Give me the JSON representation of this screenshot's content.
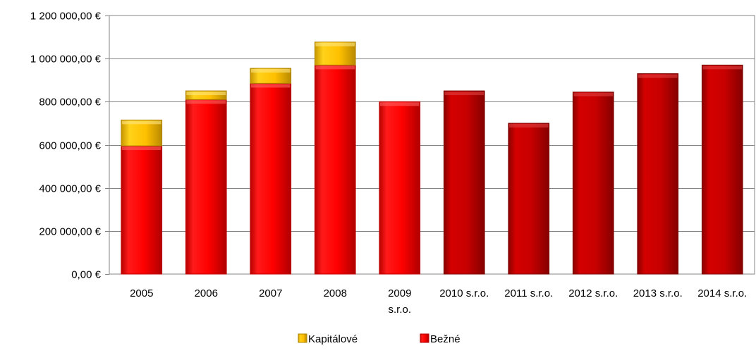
{
  "chart_data": {
    "type": "bar",
    "stacked": true,
    "categories": [
      "2005",
      "2006",
      "2007",
      "2008",
      "2009 s.r.o.",
      "2010 s.r.o.",
      "2011 s.r.o.",
      "2012 s.r.o.",
      "2013 s.r.o.",
      "2014 s.r.o."
    ],
    "series": [
      {
        "name": "Bežné",
        "color": "#ff0000",
        "colors": [
          "#ff0000",
          "#ff0000",
          "#ff0000",
          "#ff0000",
          "#ff0000",
          "#cc0000",
          "#cc0000",
          "#cc0000",
          "#cc0000",
          "#cc0000"
        ],
        "values": [
          595000,
          810000,
          885000,
          970000,
          800000,
          850000,
          700000,
          845000,
          930000,
          970000
        ]
      },
      {
        "name": "Kapitálové",
        "color": "#ffc000",
        "values": [
          120000,
          40000,
          70000,
          107000,
          0,
          0,
          0,
          0,
          0,
          0
        ]
      }
    ],
    "yticks": [
      "0,00 €",
      "200 000,00 €",
      "400 000,00 €",
      "600 000,00 €",
      "800 000,00 €",
      "1 000 000,00 €",
      "1 200 000,00 €"
    ],
    "ylim": [
      0,
      1200000
    ],
    "grid": true,
    "legend": {
      "placement": "bottom",
      "order": [
        "Kapitálové",
        "Bežné"
      ]
    }
  }
}
